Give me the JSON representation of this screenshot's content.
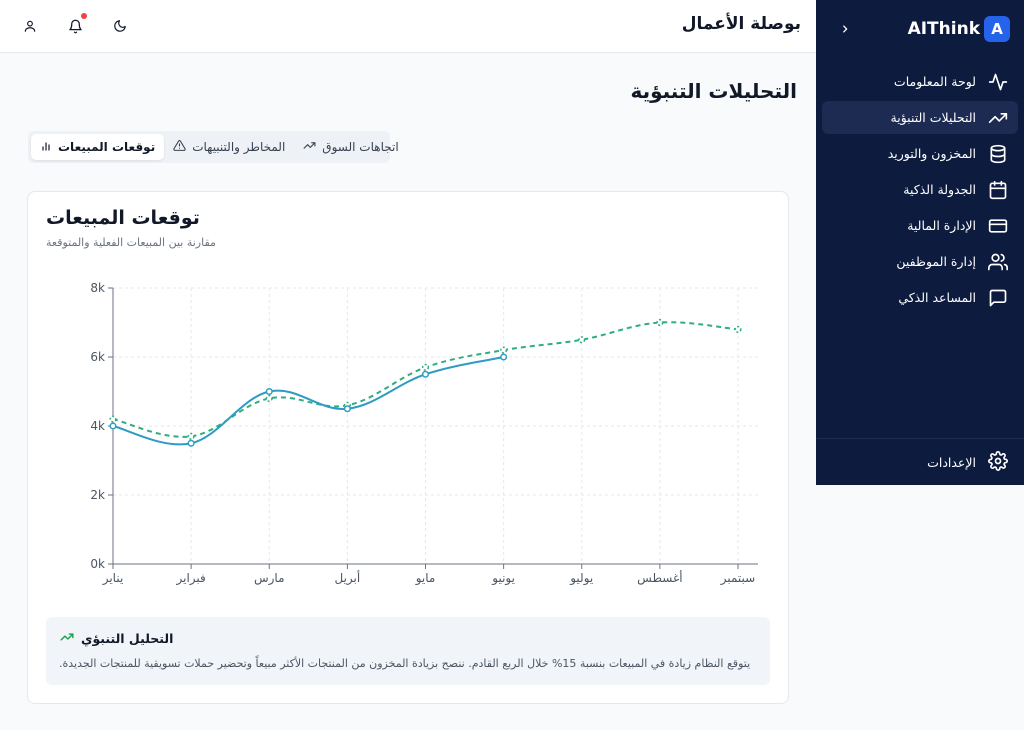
{
  "sidebar": {
    "brand_badge": "A",
    "brand_name": "AIThink",
    "items": [
      {
        "label": "لوحة المعلومات",
        "icon": "activity-icon"
      },
      {
        "label": "التحليلات التنبؤية",
        "icon": "trending-up-icon"
      },
      {
        "label": "المخزون والتوريد",
        "icon": "database-icon"
      },
      {
        "label": "الجدولة الذكية",
        "icon": "calendar-icon"
      },
      {
        "label": "الإدارة المالية",
        "icon": "credit-card-icon"
      },
      {
        "label": "إدارة الموظفين",
        "icon": "users-icon"
      },
      {
        "label": "المساعد الذكي",
        "icon": "message-square-icon"
      }
    ],
    "active_index": 1,
    "settings_label": "الإعدادات"
  },
  "header": {
    "title": "بوصلة الأعمال",
    "icons": [
      "moon-icon",
      "bell-icon",
      "user-icon"
    ]
  },
  "page": {
    "title": "التحليلات التنبؤية"
  },
  "tabs": [
    {
      "label": "اتجاهات السوق",
      "icon": "trending-up-icon"
    },
    {
      "label": "المخاطر والتنبيهات",
      "icon": "alert-triangle-icon"
    },
    {
      "label": "توقعات المبيعات",
      "icon": "bar-chart-icon"
    }
  ],
  "active_tab": 2,
  "card": {
    "title": "توقعات المبيعات",
    "subtitle": "مقارنة بين المبيعات الفعلية والمتوقعة"
  },
  "chart_data": {
    "type": "line",
    "categories": [
      "يناير",
      "فبراير",
      "مارس",
      "أبريل",
      "مايو",
      "يونيو",
      "يوليو",
      "أغسطس",
      "سبتمبر"
    ],
    "y_tick_labels": [
      "0k",
      "2k",
      "4k",
      "6k",
      "8k"
    ],
    "ylim": [
      0,
      8000
    ],
    "grid": true,
    "series": [
      {
        "values": [
          4000,
          3500,
          5000,
          4500,
          5500,
          6000,
          null,
          null,
          null
        ],
        "color": "#2f9bc4",
        "style": "solid"
      },
      {
        "values": [
          4200,
          3700,
          4800,
          4600,
          5700,
          6200,
          6500,
          7000,
          6800
        ],
        "color": "#2fae7d",
        "style": "dashed"
      }
    ]
  },
  "insight": {
    "title": "التحليل التنبؤي",
    "text": ".يتوقع النظام زيادة في المبيعات بنسبة 15% خلال الربع القادم. ننصح بزيادة المخزون من المنتجات الأكثر مبيعاً وتحضير حملات تسويقية للمنتجات الجديدة",
    "icon": "trending-up-icon",
    "accent": "#16a34a"
  }
}
